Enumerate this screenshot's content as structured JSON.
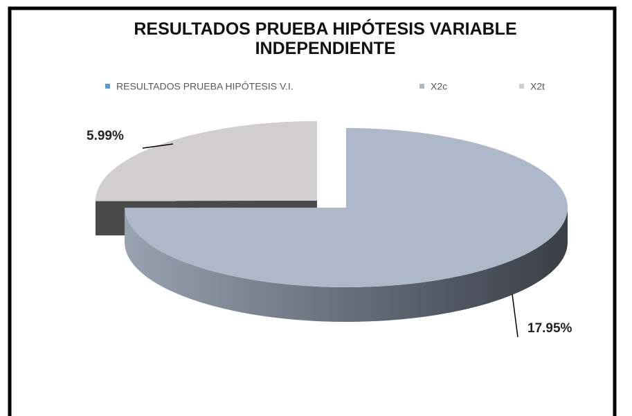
{
  "chart_data": {
    "type": "pie",
    "title": "RESULTADOS PRUEBA HIPÓTESIS VARIABLE INDEPENDIENTE",
    "categories": [
      "X2c",
      "X2t"
    ],
    "colors": [
      "#adb9ca",
      "#d0cece"
    ],
    "series": [
      {
        "name": "RESULTADOS PRUEBA HIPÓTESIS V.I.",
        "color": "#5b9bd5",
        "values": [
          17.95,
          5.99
        ],
        "value_labels": [
          "17.95%",
          "5.99%"
        ]
      }
    ]
  }
}
